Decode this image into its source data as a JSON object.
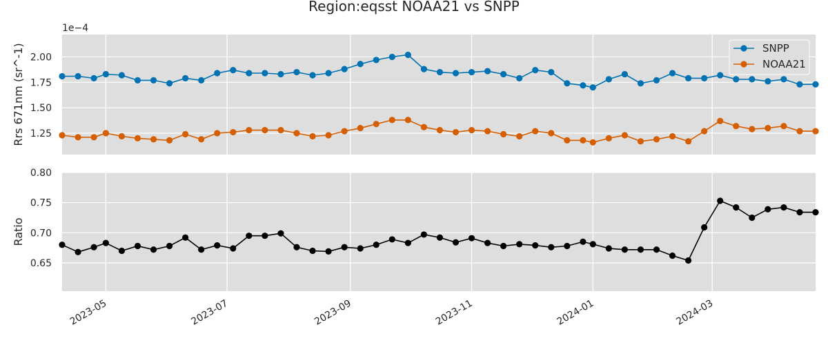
{
  "chart_data": {
    "type": "line",
    "title": "Region:eqsst NOAA21 vs SNPP",
    "x": [
      "2023-04-09",
      "2023-04-17",
      "2023-04-25",
      "2023-05-01",
      "2023-05-09",
      "2023-05-17",
      "2023-05-25",
      "2023-06-02",
      "2023-06-10",
      "2023-06-18",
      "2023-06-26",
      "2023-07-04",
      "2023-07-12",
      "2023-07-20",
      "2023-07-28",
      "2023-08-05",
      "2023-08-13",
      "2023-08-21",
      "2023-08-29",
      "2023-09-06",
      "2023-09-14",
      "2023-09-22",
      "2023-09-30",
      "2023-10-08",
      "2023-10-16",
      "2023-10-24",
      "2023-11-01",
      "2023-11-09",
      "2023-11-17",
      "2023-11-25",
      "2023-12-03",
      "2023-12-11",
      "2023-12-19",
      "2023-12-27",
      "2024-01-01",
      "2024-01-09",
      "2024-01-17",
      "2024-01-25",
      "2024-02-02",
      "2024-02-10",
      "2024-02-18",
      "2024-02-26",
      "2024-03-05",
      "2024-03-13",
      "2024-03-21",
      "2024-03-29",
      "2024-04-06",
      "2024-04-14",
      "2024-04-22"
    ],
    "panels": [
      {
        "id": "top",
        "ylabel": "Rrs 671nm (sr^-1)",
        "offset_text": "1e−4",
        "yticks": [
          1.25,
          1.5,
          1.75,
          2.0
        ],
        "ytick_labels": [
          "1.25",
          "1.50",
          "1.75",
          "2.00"
        ],
        "ylim": [
          1.04,
          2.22
        ],
        "legend": "top-right",
        "series": [
          {
            "name": "SNPP",
            "color": "#0072b2",
            "values": [
              1.81,
              1.81,
              1.79,
              1.83,
              1.82,
              1.77,
              1.77,
              1.74,
              1.79,
              1.77,
              1.84,
              1.87,
              1.84,
              1.84,
              1.83,
              1.85,
              1.82,
              1.84,
              1.88,
              1.93,
              1.97,
              2.0,
              2.02,
              1.88,
              1.85,
              1.84,
              1.85,
              1.86,
              1.83,
              1.79,
              1.87,
              1.85,
              1.74,
              1.72,
              1.7,
              1.78,
              1.83,
              1.74,
              1.77,
              1.84,
              1.79,
              1.79,
              1.82,
              1.78,
              1.78,
              1.76,
              1.78,
              1.73,
              1.73
            ]
          },
          {
            "name": "NOAA21",
            "color": "#d55e00",
            "values": [
              1.23,
              1.21,
              1.21,
              1.25,
              1.22,
              1.2,
              1.19,
              1.18,
              1.24,
              1.19,
              1.25,
              1.26,
              1.28,
              1.28,
              1.28,
              1.25,
              1.22,
              1.23,
              1.27,
              1.3,
              1.34,
              1.38,
              1.38,
              1.31,
              1.28,
              1.26,
              1.28,
              1.27,
              1.24,
              1.22,
              1.27,
              1.25,
              1.18,
              1.18,
              1.16,
              1.2,
              1.23,
              1.17,
              1.19,
              1.22,
              1.17,
              1.27,
              1.37,
              1.32,
              1.29,
              1.3,
              1.32,
              1.27,
              1.27
            ]
          }
        ]
      },
      {
        "id": "bottom",
        "ylabel": "Ratio",
        "yticks": [
          0.65,
          0.7,
          0.75,
          0.8
        ],
        "ytick_labels": [
          "0.65",
          "0.70",
          "0.75",
          "0.80"
        ],
        "ylim": [
          0.603,
          0.8
        ],
        "series": [
          {
            "name": "",
            "color": "#000000",
            "values": [
              0.68,
              0.668,
              0.676,
              0.683,
              0.67,
              0.678,
              0.672,
              0.678,
              0.692,
              0.672,
              0.679,
              0.674,
              0.695,
              0.695,
              0.699,
              0.676,
              0.67,
              0.669,
              0.676,
              0.674,
              0.68,
              0.689,
              0.683,
              0.697,
              0.692,
              0.684,
              0.691,
              0.683,
              0.678,
              0.681,
              0.679,
              0.676,
              0.678,
              0.685,
              0.681,
              0.674,
              0.672,
              0.672,
              0.672,
              0.662,
              0.654,
              0.709,
              0.753,
              0.742,
              0.725,
              0.739,
              0.742,
              0.734,
              0.734
            ]
          }
        ]
      }
    ],
    "xticks": [
      "2023-05-01",
      "2023-07-01",
      "2023-09-01",
      "2023-11-01",
      "2024-01-01",
      "2024-03-01"
    ],
    "xtick_labels": [
      "2023-05",
      "2023-07",
      "2023-09",
      "2023-11",
      "2024-01",
      "2024-03"
    ],
    "xlim": [
      "2023-04-09",
      "2024-04-22"
    ],
    "grid": true,
    "background": "#dedede"
  }
}
